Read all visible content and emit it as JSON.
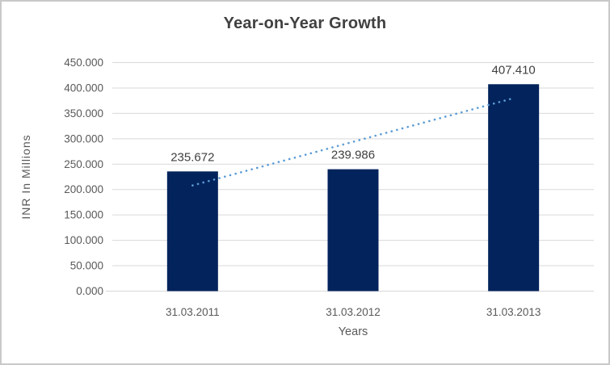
{
  "chart_data": {
    "type": "bar",
    "title": "Year-on-Year Growth",
    "xlabel": "Years",
    "ylabel": "INR In Millions",
    "categories": [
      "31.03.2011",
      "31.03.2012",
      "31.03.2013"
    ],
    "values": [
      235.672,
      239.986,
      407.41
    ],
    "data_labels": [
      "235.672",
      "239.986",
      "407.410"
    ],
    "ylim": [
      0,
      450
    ],
    "y_ticks": [
      {
        "value": 0,
        "label": "0.000"
      },
      {
        "value": 50,
        "label": "50.000"
      },
      {
        "value": 100,
        "label": "100.000"
      },
      {
        "value": 150,
        "label": "150.000"
      },
      {
        "value": 200,
        "label": "200.000"
      },
      {
        "value": 250,
        "label": "250.000"
      },
      {
        "value": 300,
        "label": "300.000"
      },
      {
        "value": 350,
        "label": "350.000"
      },
      {
        "value": 400,
        "label": "400.000"
      },
      {
        "value": 450,
        "label": "450.000"
      }
    ],
    "grid": true,
    "legend": "none",
    "trendline": {
      "type": "linear",
      "style": "dotted",
      "start_value": 208.1,
      "end_value": 379.9
    },
    "colors": {
      "bar": "#03235C",
      "trendline": "#5B9BD5",
      "gridline": "#D9D9D9",
      "axis_text": "#595959",
      "label_text": "#404040",
      "border": "#C9C9C9",
      "background": "#FFFFFF"
    }
  }
}
